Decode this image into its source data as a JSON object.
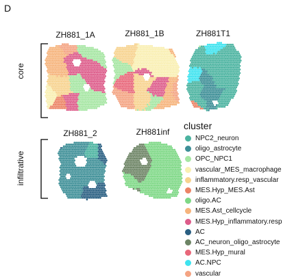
{
  "panel_letter": "D",
  "chart_data": {
    "type": "scatter",
    "title": "",
    "groups": [
      {
        "label": "core",
        "samples": [
          "ZH881_1A",
          "ZH881_1B",
          "ZH881T1"
        ]
      },
      {
        "label": "infiltrative",
        "samples": [
          "ZH881_2",
          "ZH881inf"
        ]
      }
    ],
    "legend": {
      "title": "cluster",
      "placement": "right",
      "entries": [
        {
          "name": "NPC2_neuron",
          "color": "#4bb3a0"
        },
        {
          "name": "oligo_astrocyte",
          "color": "#3e8f97"
        },
        {
          "name": "OPC_NPC1",
          "color": "#a6e6a3"
        },
        {
          "name": "vascular_MES_macrophage",
          "color": "#f9efb2"
        },
        {
          "name": "inflammatory.resp_vascular",
          "color": "#f7d38f"
        },
        {
          "name": "MES.Hyp_MES.Ast",
          "color": "#ec8466"
        },
        {
          "name": "oligo.AC",
          "color": "#7ed886"
        },
        {
          "name": "MES.Ast_cellcycle",
          "color": "#f6b47c"
        },
        {
          "name": "MES.Hyp_inflammatory.resp",
          "color": "#dd5c8a"
        },
        {
          "name": "AC",
          "color": "#2a5f82"
        },
        {
          "name": "AC_neuron_oligo_astrocyte",
          "color": "#6d8465"
        },
        {
          "name": "MES.Hyp_mural",
          "color": "#e8677a"
        },
        {
          "name": "AC.NPC",
          "color": "#3fe3ef"
        },
        {
          "name": "vascular",
          "color": "#f4a483"
        }
      ]
    },
    "samples": [
      {
        "name": "ZH881_1A",
        "group": "core",
        "composition": [
          {
            "cluster": "OPC_NPC1",
            "share": 0.34
          },
          {
            "cluster": "MES.Hyp_inflammatory.resp",
            "share": 0.18
          },
          {
            "cluster": "MES.Ast_cellcycle",
            "share": 0.16
          },
          {
            "cluster": "vascular",
            "share": 0.1
          },
          {
            "cluster": "inflammatory.resp_vascular",
            "share": 0.09
          },
          {
            "cluster": "vascular_MES_macrophage",
            "share": 0.08
          },
          {
            "cluster": "MES.Hyp_MES.Ast",
            "share": 0.05
          }
        ]
      },
      {
        "name": "ZH881_1B",
        "group": "core",
        "composition": [
          {
            "cluster": "inflammatory.resp_vascular",
            "share": 0.22
          },
          {
            "cluster": "MES.Ast_cellcycle",
            "share": 0.18
          },
          {
            "cluster": "OPC_NPC1",
            "share": 0.16
          },
          {
            "cluster": "MES.Hyp_inflammatory.resp",
            "share": 0.13
          },
          {
            "cluster": "vascular_MES_macrophage",
            "share": 0.12
          },
          {
            "cluster": "vascular",
            "share": 0.11
          },
          {
            "cluster": "MES.Hyp_mural",
            "share": 0.08
          }
        ]
      },
      {
        "name": "ZH881T1",
        "group": "core",
        "composition": [
          {
            "cluster": "NPC2_neuron",
            "share": 0.62
          },
          {
            "cluster": "oligo_astrocyte",
            "share": 0.14
          },
          {
            "cluster": "AC.NPC",
            "share": 0.12
          },
          {
            "cluster": "MES.Hyp_MES.Ast",
            "share": 0.07
          },
          {
            "cluster": "OPC_NPC1",
            "share": 0.05
          }
        ]
      },
      {
        "name": "ZH881_2",
        "group": "infiltrative",
        "composition": [
          {
            "cluster": "oligo_astrocyte",
            "share": 0.74
          },
          {
            "cluster": "AC",
            "share": 0.2
          },
          {
            "cluster": "NPC2_neuron",
            "share": 0.06
          }
        ]
      },
      {
        "name": "ZH881inf",
        "group": "infiltrative",
        "composition": [
          {
            "cluster": "oligo.AC",
            "share": 0.72
          },
          {
            "cluster": "AC_neuron_oligo_astrocyte",
            "share": 0.28
          }
        ]
      }
    ]
  }
}
